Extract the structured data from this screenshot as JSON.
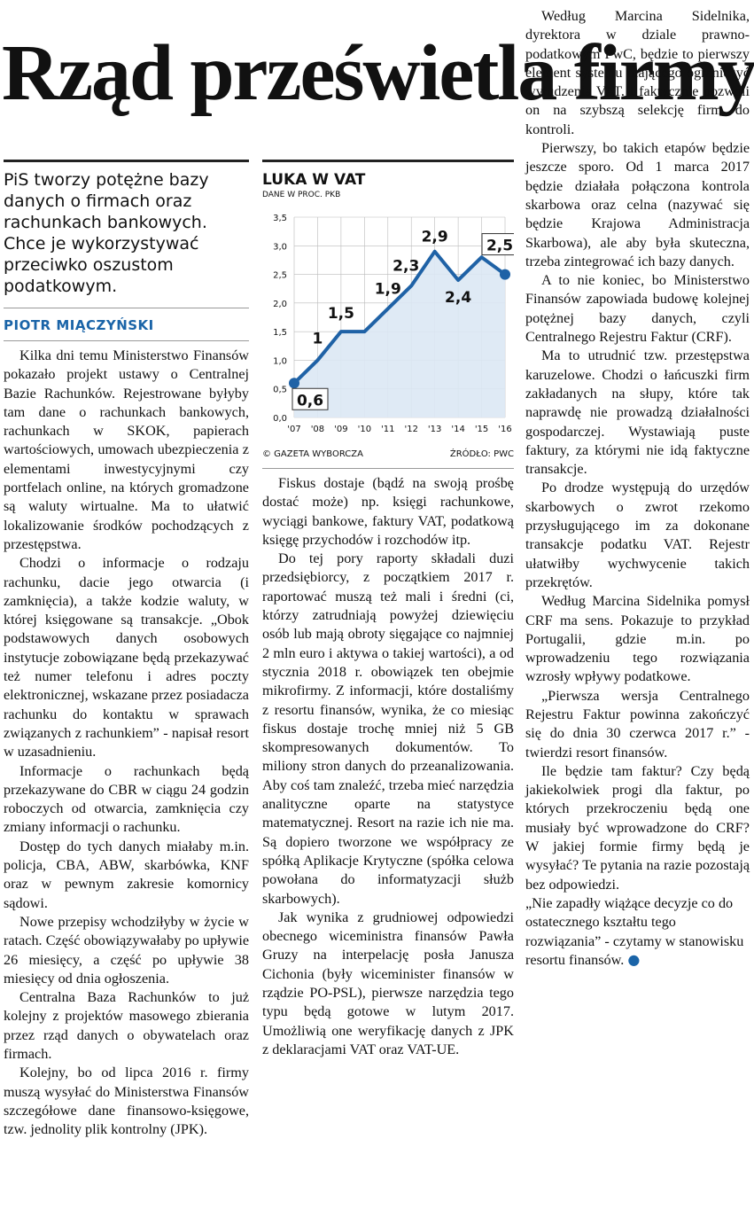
{
  "headline": "Rząd prześwietla firmy",
  "lead": "PiS tworzy potężne bazy danych o firmach oraz rachunkach bankowych. Chce je wykorzystywać przeciwko oszustom podatkowym.",
  "author": "PIOTR MIĄCZYŃSKI",
  "col1_paragraphs": [
    "Kilka dni temu Ministerstwo Finansów pokazało projekt ustawy o Centralnej Bazie Rachunków. Rejestrowane byłyby tam dane o rachunkach bankowych, rachunkach w SKOK, papierach wartościowych, umowach ubezpieczenia z elementami inwestycyjnymi czy portfelach online, na których gromadzone są waluty wirtualne. Ma to ułatwić lokalizowanie środków pochodzących z przestępstwa.",
    "Chodzi o informacje o rodzaju rachunku, dacie jego otwarcia (i zamknięcia), a także kodzie waluty, w której księgowane są transakcje. „Obok podstawowych danych osobowych instytucje zobowiązane będą przekazywać też numer telefonu i adres poczty elektronicznej, wskazane przez posiadacza rachunku do kontaktu w sprawach związanych z rachunkiem” - napisał resort w uzasadnieniu.",
    "Informacje o rachunkach będą przekazywane do CBR w ciągu 24 godzin roboczych od otwarcia, zamknięcia czy zmiany informacji o rachunku.",
    "Dostęp do tych danych miałaby m.in. policja, CBA, ABW, skarbówka, KNF oraz w pewnym zakresie komornicy sądowi.",
    "Nowe przepisy wchodziłyby w życie w ratach. Część obowiązywałaby po upływie 26 miesięcy, a część po upływie 38 miesięcy od dnia ogłoszenia.",
    "Centralna Baza Rachunków to już kolejny z projektów masowego zbierania przez rząd danych o obywatelach oraz firmach.",
    "Kolejny, bo od lipca 2016 r. firmy muszą wysyłać do Ministerstwa Finansów szczegółowe dane finansowo-księgowe, tzw. jednolity plik kontrolny (JPK)."
  ],
  "col2_paragraphs": [
    "Fiskus dostaje (bądź na swoją prośbę dostać może) np. księgi rachunkowe, wyciągi bankowe, faktury VAT, podatkową księgę przychodów i rozchodów itp.",
    "Do tej pory raporty składali duzi przedsiębiorcy, z początkiem 2017 r. raportować muszą też mali i średni (ci, którzy zatrudniają powyżej dziewięciu osób lub mają obroty sięgające co najmniej 2 mln euro i aktywa o takiej wartości), a od stycznia 2018 r. obowiązek ten obejmie mikrofirmy. Z informacji, które dostaliśmy z resortu finansów, wynika, że co miesiąc fiskus dostaje trochę mniej niż 5 GB skompresowanych dokumentów. To miliony stron danych do przeanalizowania. Aby coś tam znaleźć, trzeba mieć narzędzia analityczne oparte na statystyce matematycznej. Resort na razie ich nie ma. Są dopiero tworzone we współpracy ze spółką Aplikacje Krytyczne (spółka celowa powołana do informatyzacji służb skarbowych).",
    "Jak wynika z grudniowej odpowiedzi obecnego wiceministra finansów Pawła Gruzy na interpelację posła Janusza Cichonia (były wiceminister finansów w rządzie PO-PSL), pierwsze narzędzia tego typu będą gotowe w lutym 2017. Umożliwią one weryfikację danych z JPK z deklaracjami VAT oraz VAT-UE."
  ],
  "col3_paragraphs": [
    "Według Marcina Sidelnika, dyrektora w dziale prawno-podatkowym PwC, będzie to pierwszy element systemu mającego ograniczyć wyłudzenia VAT. I faktycznie pozwoli on na szybszą selekcję firm do kontroli.",
    "Pierwszy, bo takich etapów będzie jeszcze sporo. Od 1 marca 2017 będzie działała połączona kontrola skarbowa oraz celna (nazywać się będzie Krajowa Administracja Skarbowa), ale aby była skuteczna, trzeba zintegrować ich bazy danych.",
    "A to nie koniec, bo Ministerstwo Finansów zapowiada budowę kolejnej potężnej bazy danych, czyli Centralnego Rejestru Faktur (CRF).",
    "Ma to utrudnić tzw. przestępstwa karuzelowe. Chodzi o łańcuszki firm zakładanych na słupy, które tak naprawdę nie prowadzą działalności gospodarczej. Wystawiają puste faktury, za którymi nie idą faktyczne transakcje.",
    "Po drodze występują do urzędów skarbowych o zwrot rzekomo przysługującego im za dokonane transakcje podatku VAT. Rejestr ułatwiłby wychwycenie takich przekrętów.",
    "Według Marcina Sidelnika pomysł CRF ma sens. Pokazuje to przykład Portugalii, gdzie m.in. po wprowadzeniu tego rozwiązania wzrosły wpływy podatkowe.",
    "„Pierwsza wersja Centralnego Rejestru Faktur powinna zakończyć się do dnia 30 czerwca 2017 r.” - twierdzi resort finansów.",
    "Ile będzie tam faktur? Czy będą jakiekolwiek progi dla faktur, po których przekroczeniu będą one musiały być wprowadzone do CRF? W jakiej formie firmy będą je wysyłać? Te pytania na razie pozostają bez odpowiedzi.",
    "„Nie zapadły wiążące decyzje co do ostatecznego kształtu tego rozwiązania” - czytamy w stanowisku resortu finansów."
  ],
  "end_mark": "●",
  "chart_data": {
    "type": "area",
    "title": "LUKA W VAT",
    "subtitle": "DANE W PROC. PKB",
    "x": [
      "'07",
      "'08",
      "'09",
      "'10",
      "'11",
      "'12",
      "'13",
      "'14",
      "'15",
      "'16"
    ],
    "values": [
      0.6,
      1.0,
      1.5,
      1.5,
      1.9,
      2.3,
      2.9,
      2.4,
      2.8,
      2.5
    ],
    "data_labels": [
      {
        "index": 0,
        "text": "0,6",
        "boxed": true
      },
      {
        "index": 1,
        "text": "1",
        "boxed": false
      },
      {
        "index": 2,
        "text": "1,5",
        "boxed": false
      },
      {
        "index": 4,
        "text": "1,9",
        "boxed": false
      },
      {
        "index": 5,
        "text": "2,3",
        "boxed": false
      },
      {
        "index": 6,
        "text": "2,9",
        "boxed": false
      },
      {
        "index": 7,
        "text": "2,4",
        "boxed": false
      },
      {
        "index": 9,
        "text": "2,5",
        "boxed": true
      }
    ],
    "yticks": [
      "0,0",
      "0,5",
      "1,0",
      "1,5",
      "2,0",
      "2,5",
      "3,0",
      "3,5"
    ],
    "ylim": [
      0,
      3.5
    ],
    "grid": true,
    "line_color": "#1f62a6",
    "fill_color": "#dce8f4",
    "credit": "© GAZETA WYBORCZA",
    "source": "ŹRÓDŁO: PWC"
  }
}
